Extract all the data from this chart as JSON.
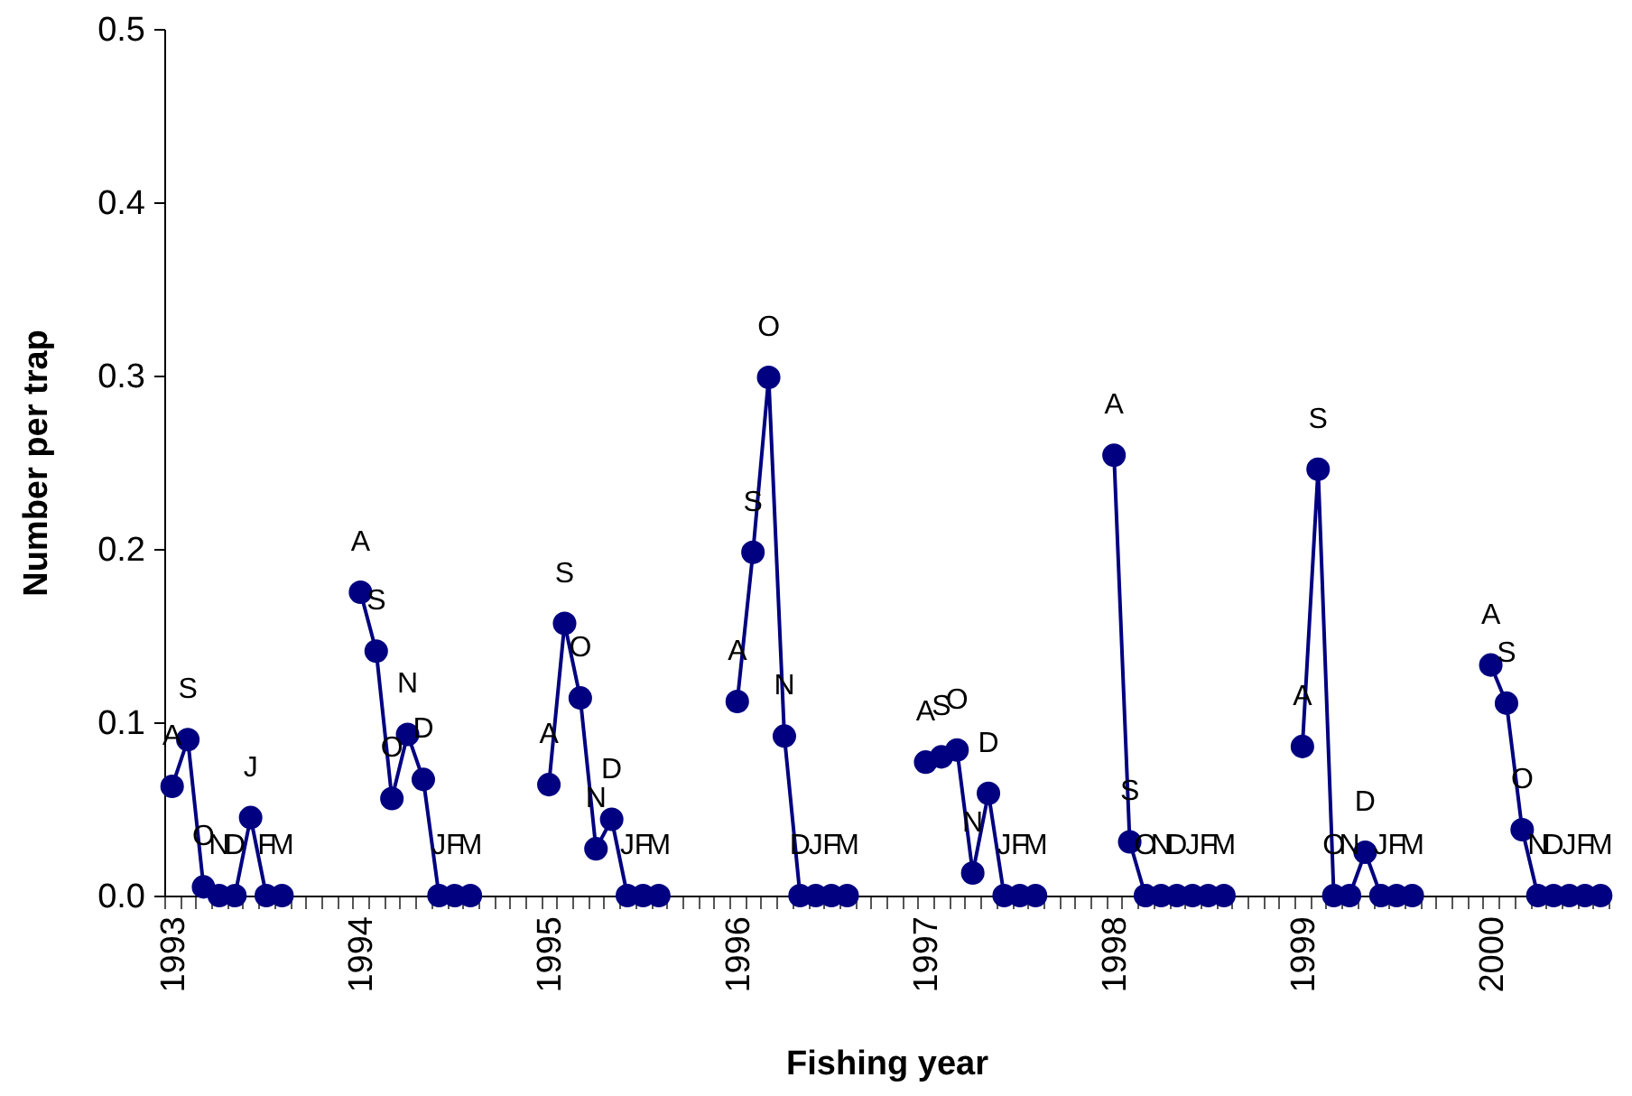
{
  "chart_data": {
    "type": "line",
    "xlabel": "Fishing year",
    "ylabel": "Number per trap",
    "categories": [
      "1993",
      null,
      null,
      null,
      null,
      null,
      null,
      null,
      null,
      null,
      null,
      null,
      "1994",
      null,
      null,
      null,
      null,
      null,
      null,
      null,
      null,
      null,
      null,
      null,
      "1995",
      null,
      null,
      null,
      null,
      null,
      null,
      null,
      null,
      null,
      null,
      null,
      "1996",
      null,
      null,
      null,
      null,
      null,
      null,
      null,
      null,
      null,
      null,
      null,
      "1997",
      null,
      null,
      null,
      null,
      null,
      null,
      null,
      null,
      null,
      null,
      null,
      "1998",
      null,
      null,
      null,
      null,
      null,
      null,
      null,
      null,
      null,
      null,
      null,
      "1999",
      null,
      null,
      null,
      null,
      null,
      null,
      null,
      null,
      null,
      null,
      null,
      "2000",
      null,
      null,
      null,
      null,
      null,
      null,
      null
    ],
    "series": [
      {
        "color": "#000080",
        "values": [
          0.063,
          0.09,
          0.005,
          0,
          0,
          0.045,
          0,
          0,
          null,
          null,
          null,
          null,
          0.175,
          0.141,
          0.056,
          0.093,
          0.067,
          0,
          0,
          0,
          null,
          null,
          null,
          null,
          0.064,
          0.157,
          0.114,
          0.027,
          0.044,
          0,
          0,
          0,
          null,
          null,
          null,
          null,
          0.112,
          0.198,
          0.299,
          0.092,
          0,
          0,
          0,
          0,
          null,
          null,
          null,
          null,
          0.077,
          0.08,
          0.084,
          0.013,
          0.059,
          0,
          0,
          0,
          null,
          null,
          null,
          null,
          0.254,
          0.031,
          0,
          0,
          0,
          0,
          0,
          0,
          null,
          null,
          null,
          null,
          0.086,
          0.246,
          0,
          0,
          0.025,
          0,
          0,
          0,
          null,
          null,
          null,
          null,
          0.133,
          0.111,
          0.038,
          0,
          0,
          0,
          0,
          0
        ],
        "value_labels": [
          "A",
          "S",
          "O",
          "N",
          "D",
          "J",
          "F",
          "M",
          null,
          null,
          null,
          null,
          "A",
          "S",
          "O",
          "N",
          "D",
          "J",
          "F",
          "M",
          null,
          null,
          null,
          null,
          "A",
          "S",
          "O",
          "N",
          "D",
          "J",
          "F",
          "M",
          null,
          null,
          null,
          null,
          "A",
          "S",
          "O",
          "N",
          "D",
          "J",
          "F",
          "M",
          null,
          null,
          null,
          null,
          "A",
          "S",
          "O",
          "N",
          "D",
          "J",
          "F",
          "M",
          null,
          null,
          null,
          null,
          "A",
          "S",
          "O",
          "N",
          "D",
          "J",
          "F",
          "M",
          null,
          null,
          null,
          null,
          "A",
          "S",
          "O",
          "N",
          "D",
          "J",
          "F",
          "M",
          null,
          null,
          null,
          null,
          "A",
          "S",
          "O",
          "N",
          "D",
          "J",
          "F",
          "M"
        ]
      }
    ],
    "ylim": [
      0,
      0.5
    ],
    "yticks": [
      {
        "value": 0,
        "label": "0.0"
      },
      0.1,
      0.2,
      0.3,
      0.4,
      0.5
    ],
    "marker": "circle"
  }
}
